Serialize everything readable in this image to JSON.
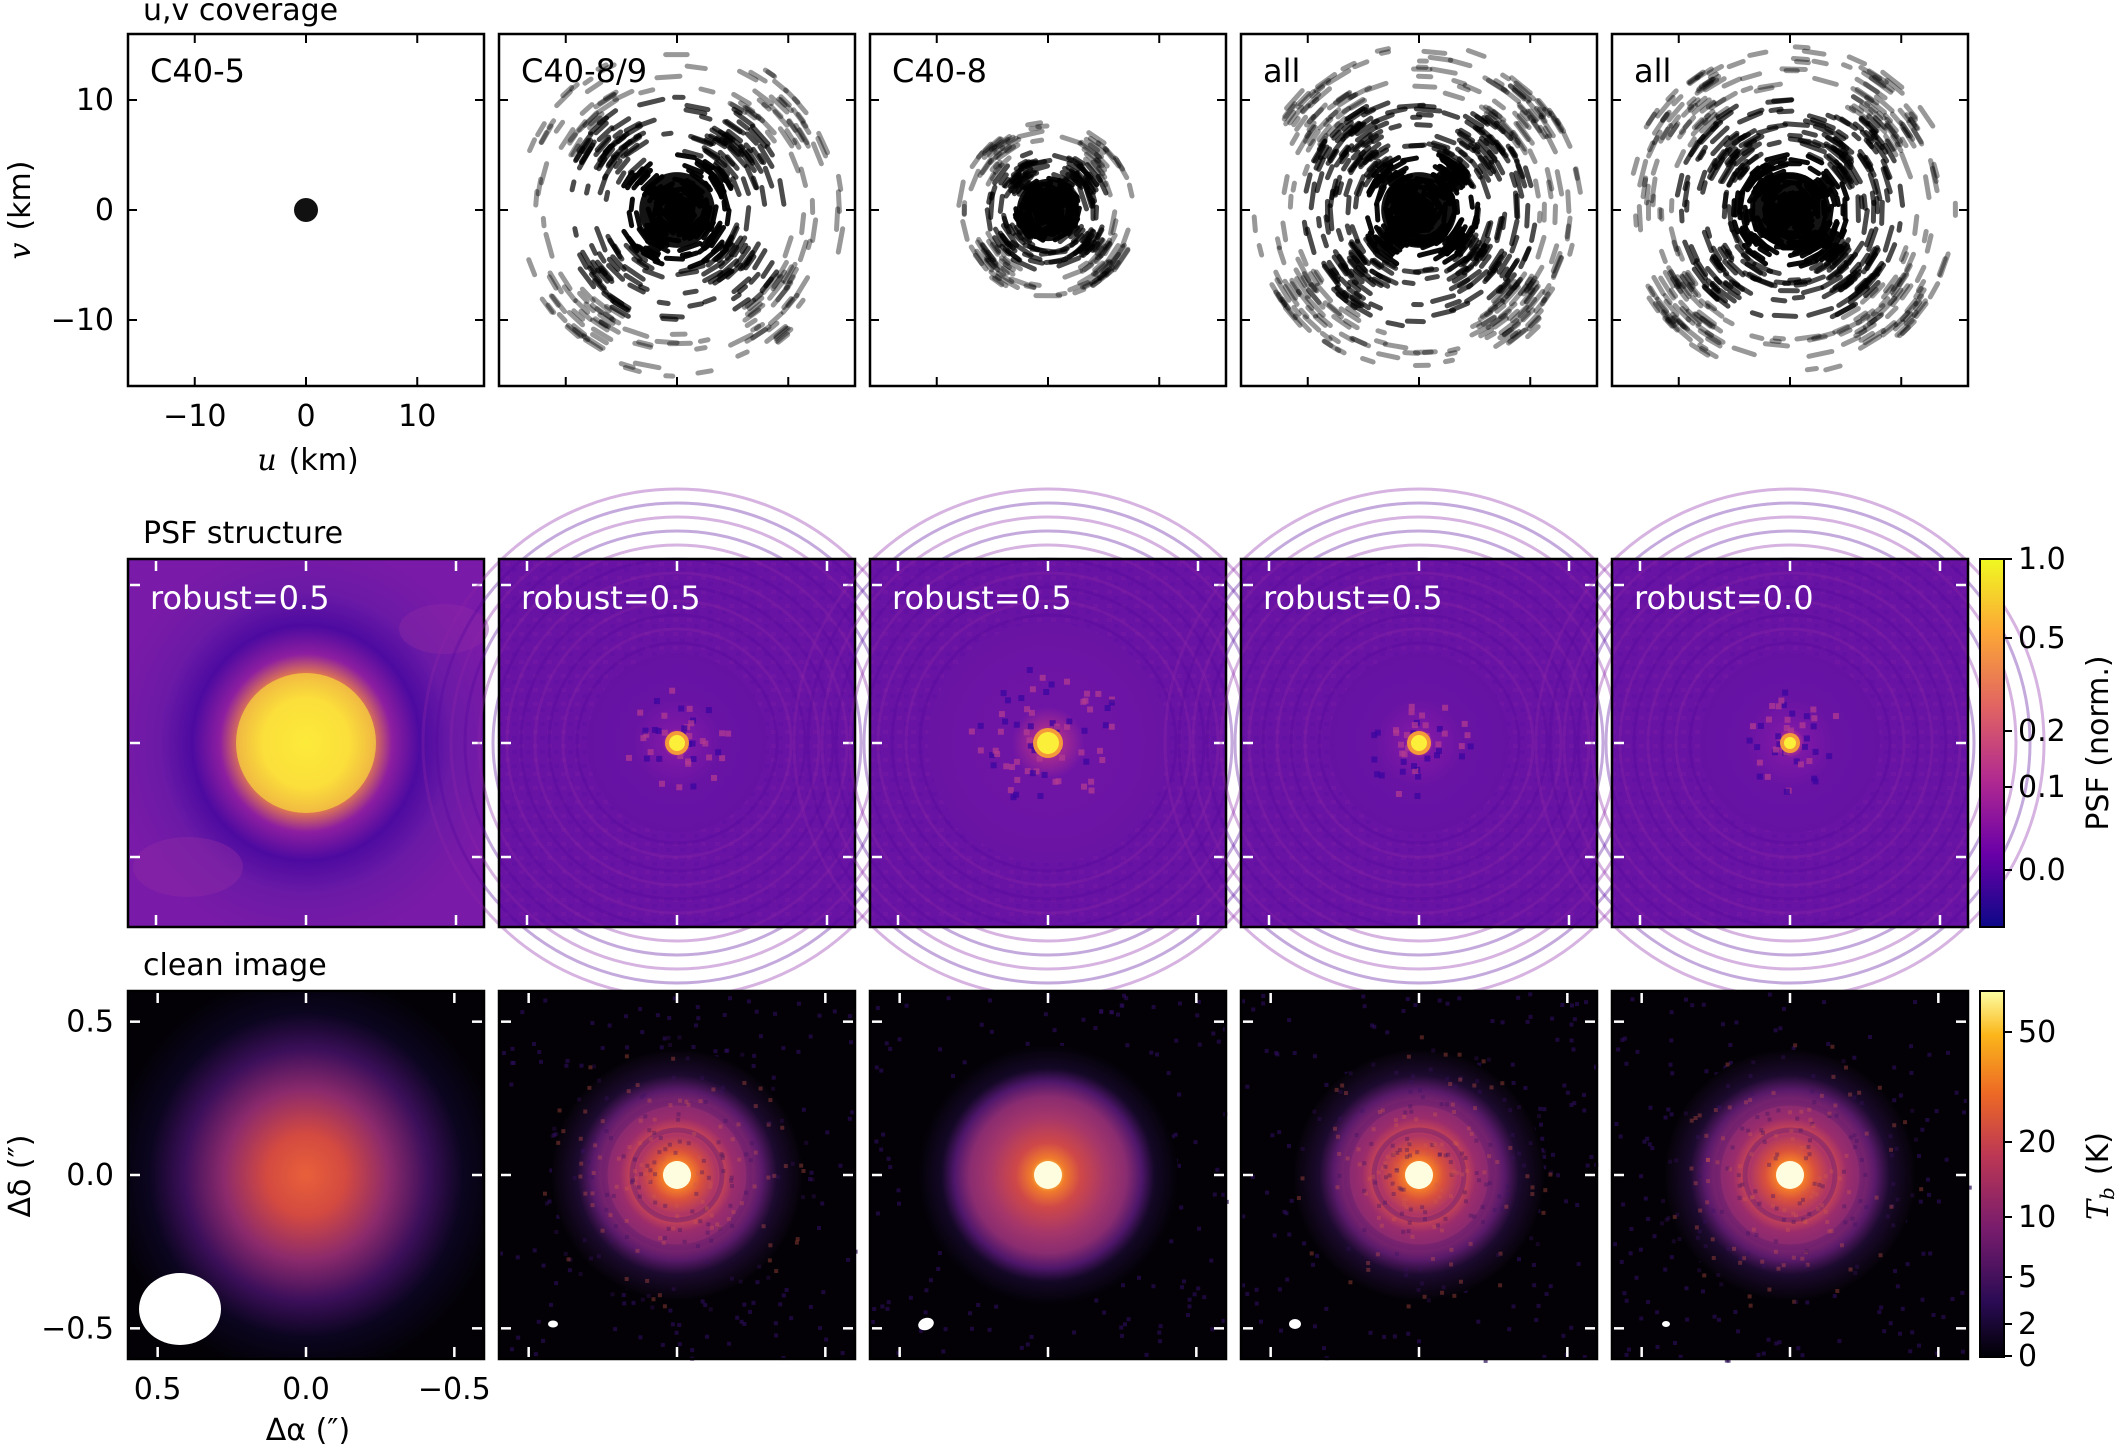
{
  "rows": {
    "coverage": {
      "label": "u,v coverage",
      "axes": {
        "ylabel_var": "v",
        "ylabel_unit": "(km)",
        "xlabel_var": "u",
        "xlabel_unit": "(km)",
        "yticks": [
          "10",
          "0",
          "−10"
        ],
        "xticks": [
          "10",
          "0",
          "−10"
        ],
        "ylim": [
          -16,
          16
        ],
        "xlim": [
          16,
          -16
        ]
      },
      "panels": [
        {
          "label": "C40-5"
        },
        {
          "label": "C40-8/9"
        },
        {
          "label": "C40-8"
        },
        {
          "label": "all"
        },
        {
          "label": "all"
        }
      ]
    },
    "psf": {
      "label": "PSF structure",
      "panels": [
        {
          "label": "robust=0.5"
        },
        {
          "label": "robust=0.5"
        },
        {
          "label": "robust=0.5"
        },
        {
          "label": "robust=0.5"
        },
        {
          "label": "robust=0.0"
        }
      ],
      "colorbar": {
        "label": "PSF (norm.)",
        "ticks": [
          "1.0",
          "0.5",
          "0.2",
          "0.1",
          "0.0"
        ],
        "colormap": "plasma"
      }
    },
    "image": {
      "label": "clean image",
      "axes": {
        "ylabel": "Δδ  (″)",
        "xlabel": "Δα  (″)",
        "yticks": [
          "0.5",
          "0.0",
          "−0.5"
        ],
        "xticks": [
          "0.5",
          "0.0",
          "−0.5"
        ],
        "xlim": [
          0.6,
          -0.6
        ],
        "ylim": [
          -0.6,
          0.6
        ]
      },
      "colorbar": {
        "label_var": "T",
        "label_sub": "b",
        "label_unit": "(K)",
        "ticks": [
          "50",
          "20",
          "10",
          "5",
          "2",
          "0"
        ],
        "colormap": "inferno"
      }
    }
  },
  "chart_data": [
    {
      "type": "scatter",
      "title": "u,v coverage",
      "xlabel": "u (km)",
      "ylabel": "v (km)",
      "xlim": [
        16,
        -16
      ],
      "ylim": [
        -16,
        16
      ],
      "panels": [
        "C40-5",
        "C40-8/9",
        "C40-8",
        "all",
        "all"
      ],
      "note": "baseline tracks, C40-5 compact within ~1 km; C40-8 within ~8 km; C40-8/9 and all extend to ~15 km"
    },
    {
      "type": "heatmap",
      "title": "PSF structure",
      "panels": [
        "robust=0.5",
        "robust=0.5",
        "robust=0.5",
        "robust=0.5",
        "robust=0.0"
      ],
      "colorbar_label": "PSF (norm.)",
      "colorbar_ticks": [
        1.0,
        0.5,
        0.2,
        0.1,
        0.0
      ]
    },
    {
      "type": "heatmap",
      "title": "clean image",
      "xlabel": "Δα (″)",
      "ylabel": "Δδ (″)",
      "xlim": [
        0.6,
        -0.6
      ],
      "ylim": [
        -0.6,
        0.6
      ],
      "colorbar_label": "T_b (K)",
      "colorbar_ticks": [
        50,
        20,
        10,
        5,
        2,
        0
      ],
      "panels": 5
    }
  ]
}
